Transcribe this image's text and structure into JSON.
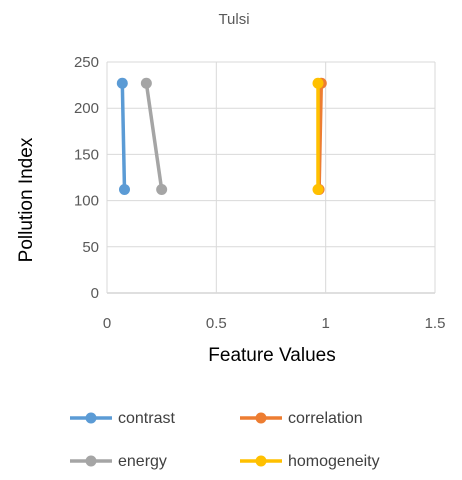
{
  "chart_data": {
    "type": "scatter",
    "title": "Tulsi",
    "xlabel": "Feature Values",
    "ylabel": "Pollution Index",
    "xlim": [
      0,
      1.5
    ],
    "ylim": [
      0,
      250
    ],
    "xticks": [
      0,
      0.5,
      1,
      1.5
    ],
    "yticks": [
      0,
      50,
      100,
      150,
      200,
      250
    ],
    "xtick_labels": [
      "0",
      "0.5",
      "1",
      "1.5"
    ],
    "ytick_labels": [
      "0",
      "50",
      "100",
      "150",
      "200",
      "250"
    ],
    "grid": true,
    "legend_position": "bottom",
    "series": [
      {
        "name": "contrast",
        "color": "#5B9BD5",
        "points": [
          [
            0.08,
            112
          ],
          [
            0.07,
            227
          ]
        ]
      },
      {
        "name": "correlation",
        "color": "#ED7D31",
        "points": [
          [
            0.97,
            112
          ],
          [
            0.98,
            227
          ]
        ]
      },
      {
        "name": "energy",
        "color": "#A5A5A5",
        "points": [
          [
            0.25,
            112
          ],
          [
            0.18,
            227
          ]
        ]
      },
      {
        "name": "homogeneity",
        "color": "#FFC000",
        "points": [
          [
            0.965,
            112
          ],
          [
            0.965,
            227
          ]
        ]
      }
    ]
  }
}
